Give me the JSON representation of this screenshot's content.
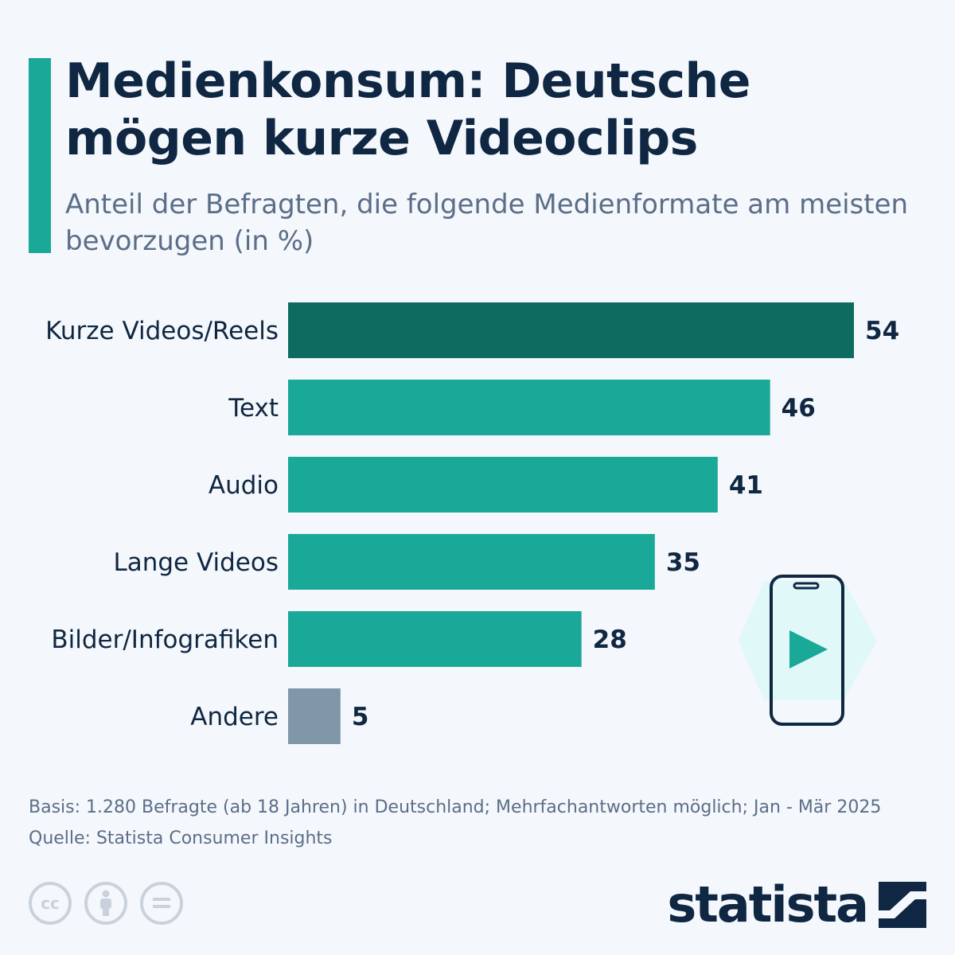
{
  "title": "Medienkonsum: Deutsche mögen kurze Videoclips",
  "subtitle": "Anteil der Befragten, die folgende Medienformate am meisten bevorzugen (in %)",
  "footnote": {
    "basis": "Basis: 1.280 Befragte (ab 18 Jahren) in Deutschland; Mehrfachantworten möglich; Jan - Mär 2025",
    "source": "Quelle: Statista Consumer Insights"
  },
  "branding": {
    "logo_text": "statista",
    "license_icons": [
      "cc-icon",
      "attribution-icon",
      "no-derivatives-icon"
    ],
    "cc_label": "cc"
  },
  "colors": {
    "accent": "#1aa898",
    "highlight": "#0e6b60",
    "other": "#7f97a8",
    "title": "#0f2742"
  },
  "chart_data": {
    "type": "bar",
    "orientation": "horizontal",
    "categories": [
      "Kurze Videos/Reels",
      "Text",
      "Audio",
      "Lange Videos",
      "Bilder/Infografiken",
      "Andere"
    ],
    "values": [
      54,
      46,
      41,
      35,
      28,
      5
    ],
    "bar_colors": [
      "#0e6b60",
      "#1aa898",
      "#1aa898",
      "#1aa898",
      "#1aa898",
      "#7f97a8"
    ],
    "xlim": [
      0,
      54
    ],
    "grid": false
  }
}
